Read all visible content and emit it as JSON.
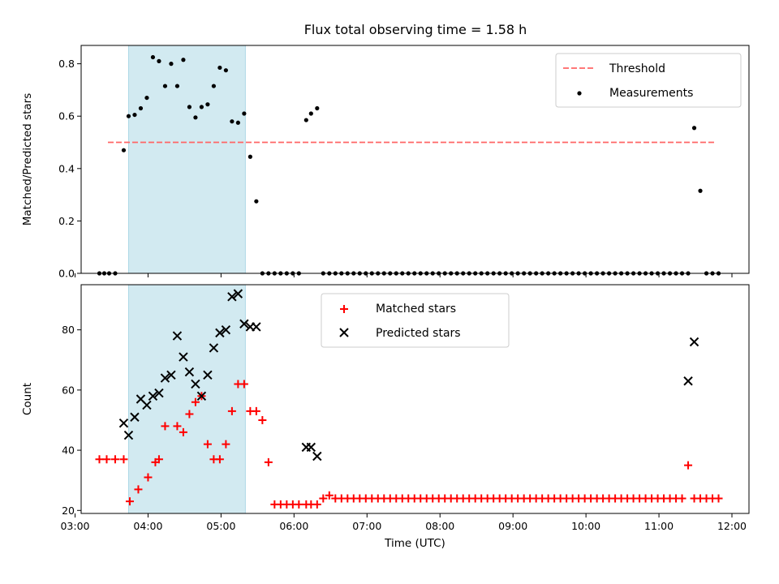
{
  "title": "Flux total observing time = 1.58 h",
  "chart_data": [
    {
      "type": "scatter",
      "ylabel": "Matched/Predicted stars",
      "xlabel": "",
      "ylim": [
        0,
        0.87
      ],
      "yticks": [
        "0.0",
        "0.2",
        "0.4",
        "0.6",
        "0.8"
      ],
      "threshold": {
        "name": "Threshold",
        "value": 0.5,
        "x_from": "03:27",
        "x_to": "11:47",
        "color": "#ff6666"
      },
      "legend": {
        "placement": "top-right",
        "entries": [
          "Threshold",
          "Measurements"
        ]
      },
      "highlight": {
        "x_from": "03:44",
        "x_to": "05:20",
        "color": "#add8e6"
      },
      "series": [
        {
          "name": "Measurements",
          "color": "#000000",
          "x": [
            "03:20",
            "03:24",
            "03:28",
            "03:33",
            "03:40",
            "03:44",
            "03:49",
            "03:54",
            "03:59",
            "04:04",
            "04:09",
            "04:14",
            "04:19",
            "04:24",
            "04:29",
            "04:34",
            "04:39",
            "04:44",
            "04:49",
            "04:54",
            "04:59",
            "05:04",
            "05:09",
            "05:14",
            "05:19",
            "05:24",
            "05:29",
            "05:34",
            "05:39",
            "05:44",
            "05:49",
            "05:54",
            "05:59",
            "06:04",
            "06:10",
            "06:14",
            "06:19",
            "06:24",
            "06:29",
            "06:34",
            "06:39",
            "06:44",
            "06:49",
            "06:54",
            "06:59",
            "07:04",
            "07:09",
            "07:14",
            "07:19",
            "07:24",
            "07:29",
            "07:34",
            "07:39",
            "07:44",
            "07:49",
            "07:54",
            "07:59",
            "08:04",
            "08:09",
            "08:14",
            "08:19",
            "08:24",
            "08:29",
            "08:34",
            "08:39",
            "08:44",
            "08:49",
            "08:54",
            "08:59",
            "09:04",
            "09:09",
            "09:14",
            "09:19",
            "09:24",
            "09:29",
            "09:34",
            "09:39",
            "09:44",
            "09:49",
            "09:54",
            "09:59",
            "10:04",
            "10:09",
            "10:14",
            "10:19",
            "10:24",
            "10:29",
            "10:34",
            "10:39",
            "10:44",
            "10:49",
            "10:54",
            "10:59",
            "11:04",
            "11:09",
            "11:14",
            "11:19",
            "11:24",
            "11:29",
            "11:34",
            "11:39",
            "11:44",
            "11:49"
          ],
          "y": [
            0,
            0,
            0,
            0,
            0.47,
            0.6,
            0.605,
            0.63,
            0.67,
            0.825,
            0.81,
            0.715,
            0.8,
            0.715,
            0.815,
            0.635,
            0.595,
            0.635,
            0.645,
            0.715,
            0.785,
            0.775,
            0.58,
            0.575,
            0.61,
            0.445,
            0.275,
            0,
            0,
            0,
            0,
            0,
            0,
            0,
            0.585,
            0.61,
            0.63,
            0,
            0,
            0,
            0,
            0,
            0,
            0,
            0,
            0,
            0,
            0,
            0,
            0,
            0,
            0,
            0,
            0,
            0,
            0,
            0,
            0,
            0,
            0,
            0,
            0,
            0,
            0,
            0,
            0,
            0,
            0,
            0,
            0,
            0,
            0,
            0,
            0,
            0,
            0,
            0,
            0,
            0,
            0,
            0,
            0,
            0,
            0,
            0,
            0,
            0,
            0,
            0,
            0,
            0,
            0,
            0,
            0,
            0,
            0,
            0,
            0,
            0.555,
            0.315,
            0,
            0,
            0
          ]
        }
      ]
    },
    {
      "type": "scatter",
      "xlabel": "Time (UTC)",
      "ylabel": "Count",
      "ylim": [
        19,
        95
      ],
      "yticks": [
        "20",
        "40",
        "60",
        "80"
      ],
      "xlim": [
        "03:05",
        "12:14"
      ],
      "xticks": [
        "03:00",
        "04:00",
        "05:00",
        "06:00",
        "07:00",
        "08:00",
        "09:00",
        "10:00",
        "11:00",
        "12:00"
      ],
      "legend": {
        "placement": "upper-center",
        "entries": [
          "Matched stars",
          "Predicted stars"
        ]
      },
      "highlight": {
        "x_from": "03:44",
        "x_to": "05:20",
        "color": "#add8e6"
      },
      "series": [
        {
          "name": "Matched stars",
          "marker": "+",
          "color": "#ff0000",
          "x": [
            "03:20",
            "03:26",
            "03:33",
            "03:40",
            "03:45",
            "03:52",
            "04:00",
            "04:06",
            "04:09",
            "04:14",
            "04:24",
            "04:29",
            "04:34",
            "04:39",
            "04:44",
            "04:49",
            "04:54",
            "04:59",
            "05:04",
            "05:09",
            "05:14",
            "05:19",
            "05:24",
            "05:29",
            "05:34",
            "05:39",
            "05:44",
            "05:49",
            "05:54",
            "05:59",
            "06:04",
            "06:10",
            "06:14",
            "06:19",
            "06:24",
            "06:29",
            "06:34",
            "06:39",
            "06:44",
            "06:49",
            "06:54",
            "06:59",
            "07:04",
            "07:09",
            "07:14",
            "07:19",
            "07:24",
            "07:29",
            "07:34",
            "07:39",
            "07:44",
            "07:49",
            "07:54",
            "07:59",
            "08:04",
            "08:09",
            "08:14",
            "08:19",
            "08:24",
            "08:29",
            "08:34",
            "08:39",
            "08:44",
            "08:49",
            "08:54",
            "08:59",
            "09:04",
            "09:09",
            "09:14",
            "09:19",
            "09:24",
            "09:29",
            "09:34",
            "09:39",
            "09:44",
            "09:49",
            "09:54",
            "09:59",
            "10:04",
            "10:09",
            "10:14",
            "10:19",
            "10:24",
            "10:29",
            "10:34",
            "10:39",
            "10:44",
            "10:49",
            "10:54",
            "10:59",
            "11:04",
            "11:09",
            "11:14",
            "11:19",
            "11:24",
            "11:29",
            "11:34",
            "11:39",
            "11:44",
            "11:49"
          ],
          "y": [
            37,
            37,
            37,
            37,
            23,
            27,
            31,
            36,
            37,
            48,
            48,
            46,
            52,
            56,
            58,
            42,
            37,
            37,
            42,
            53,
            62,
            62,
            53,
            53,
            50,
            36,
            22,
            22,
            22,
            22,
            22,
            22,
            22,
            22,
            24,
            25,
            24,
            24,
            24,
            24,
            24,
            24,
            24,
            24,
            24,
            24,
            24,
            24,
            24,
            24,
            24,
            24,
            24,
            24,
            24,
            24,
            24,
            24,
            24,
            24,
            24,
            24,
            24,
            24,
            24,
            24,
            24,
            24,
            24,
            24,
            24,
            24,
            24,
            24,
            24,
            24,
            24,
            24,
            24,
            24,
            24,
            24,
            24,
            24,
            24,
            24,
            24,
            24,
            24,
            24,
            24,
            24,
            24,
            24,
            35,
            24,
            24,
            24,
            24,
            24
          ]
        },
        {
          "name": "Predicted stars",
          "marker": "x",
          "color": "#000000",
          "x": [
            "03:40",
            "03:44",
            "03:49",
            "03:54",
            "03:59",
            "04:04",
            "04:09",
            "04:14",
            "04:19",
            "04:24",
            "04:29",
            "04:34",
            "04:39",
            "04:44",
            "04:49",
            "04:54",
            "04:59",
            "05:04",
            "05:09",
            "05:14",
            "05:19",
            "05:24",
            "05:29",
            "06:10",
            "06:14",
            "06:19",
            "11:24",
            "11:29"
          ],
          "y": [
            49,
            45,
            51,
            57,
            55,
            58,
            59,
            64,
            65,
            78,
            71,
            66,
            62,
            58,
            65,
            74,
            79,
            80,
            91,
            92,
            82,
            81,
            81,
            41,
            41,
            38,
            63,
            76
          ]
        }
      ]
    }
  ]
}
